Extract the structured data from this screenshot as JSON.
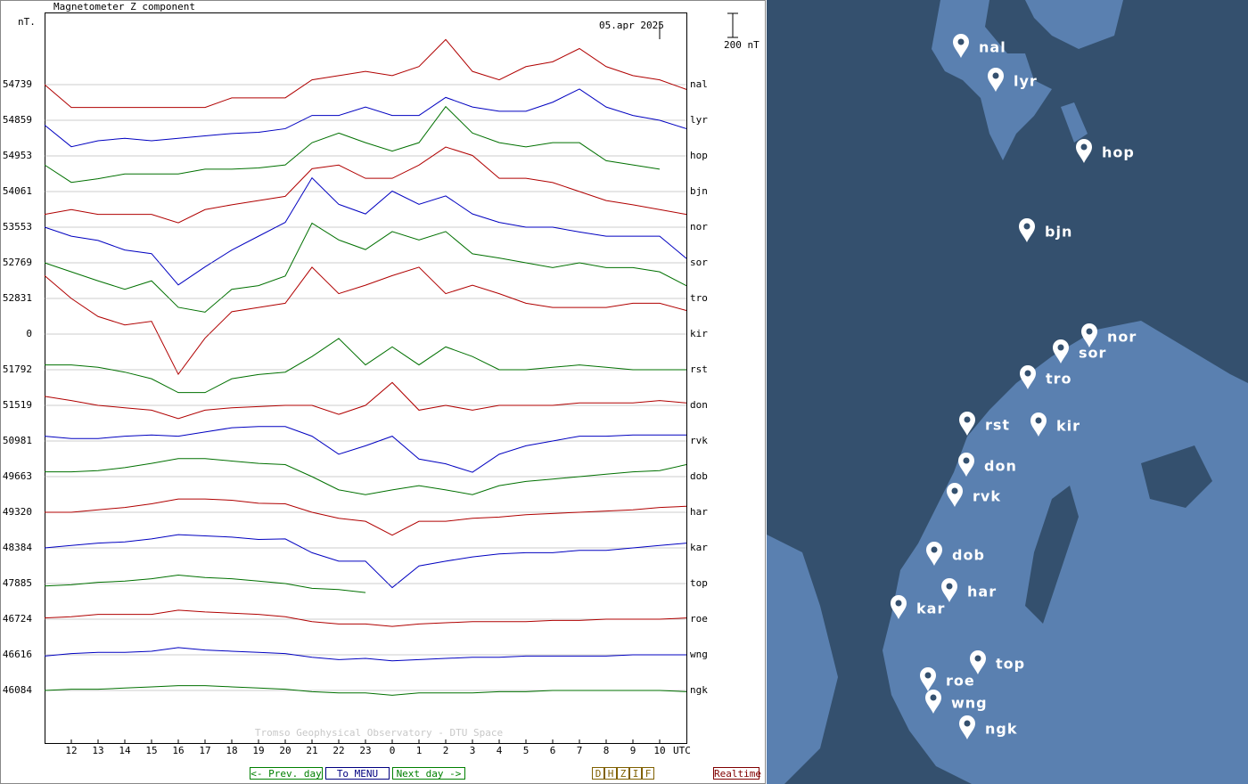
{
  "plot": {
    "title": "Magnetometer Z component",
    "unit_label": "nT.",
    "date": "05.apr 2025",
    "scale": {
      "value": 200,
      "label": "200 nT"
    },
    "x_unit": "UTC",
    "watermark": "Tromso Geophysical Observatory - DTU Space",
    "xlim": [
      11,
      35
    ],
    "x": [
      11,
      12,
      13,
      14,
      15,
      16,
      17,
      18,
      19,
      20,
      21,
      22,
      23,
      24,
      25,
      26,
      27,
      28,
      29,
      30,
      31,
      32,
      33,
      34,
      35
    ],
    "xticks": [
      12,
      13,
      14,
      15,
      16,
      17,
      18,
      19,
      20,
      21,
      22,
      23,
      {
        "value": 24,
        "label": "0"
      },
      {
        "value": 25,
        "label": "1"
      },
      {
        "value": 26,
        "label": "2"
      },
      {
        "value": 27,
        "label": "3"
      },
      {
        "value": 28,
        "label": "4"
      },
      {
        "value": 29,
        "label": "5"
      },
      {
        "value": 30,
        "label": "6"
      },
      {
        "value": 31,
        "label": "7"
      },
      {
        "value": 32,
        "label": "8"
      },
      {
        "value": 33,
        "label": "9"
      },
      {
        "value": 34,
        "label": "10"
      }
    ],
    "stations": [
      {
        "name": "nal",
        "baseline": 54739,
        "color": "#b00000",
        "values": [
          0,
          -190,
          -190,
          -190,
          -190,
          -190,
          -190,
          -110,
          -110,
          -110,
          40,
          75,
          110,
          75,
          150,
          375,
          110,
          40,
          150,
          190,
          300,
          150,
          75,
          40,
          -40
        ]
      },
      {
        "name": "lyr",
        "baseline": 54859,
        "color": "#0000c0",
        "values": [
          -40,
          -220,
          -170,
          -150,
          -170,
          -150,
          -130,
          -110,
          -100,
          -70,
          40,
          40,
          110,
          40,
          40,
          190,
          110,
          75,
          75,
          150,
          260,
          110,
          40,
          0,
          -70
        ]
      },
      {
        "name": "hop",
        "baseline": 54953,
        "color": "#007000",
        "values": [
          -75,
          -220,
          -190,
          -150,
          -150,
          -150,
          -110,
          -110,
          -100,
          -75,
          110,
          190,
          110,
          40,
          110,
          410,
          190,
          110,
          75,
          110,
          110,
          -40,
          -75,
          -110,
          null
        ]
      },
      {
        "name": "bjn",
        "baseline": 54061,
        "color": "#b00000",
        "values": [
          -190,
          -150,
          -190,
          -190,
          -190,
          -260,
          -150,
          -110,
          -75,
          -40,
          190,
          220,
          110,
          110,
          220,
          370,
          300,
          110,
          110,
          75,
          0,
          -75,
          -110,
          -150,
          -190
        ]
      },
      {
        "name": "nor",
        "baseline": 53553,
        "color": "#0000c0",
        "values": [
          0,
          -75,
          -110,
          -190,
          -220,
          -480,
          -330,
          -190,
          -75,
          40,
          410,
          190,
          110,
          300,
          190,
          260,
          110,
          40,
          0,
          0,
          -40,
          -75,
          -75,
          -75,
          -260
        ]
      },
      {
        "name": "sor",
        "baseline": 52769,
        "color": "#007000",
        "values": [
          0,
          -75,
          -150,
          -220,
          -150,
          -370,
          -410,
          -220,
          -190,
          -110,
          330,
          190,
          110,
          260,
          190,
          260,
          75,
          40,
          0,
          -40,
          0,
          -40,
          -40,
          -75,
          -190
        ]
      },
      {
        "name": "tro",
        "baseline": 52831,
        "color": "#b00000",
        "values": [
          190,
          0,
          -150,
          -220,
          -190,
          -630,
          -330,
          -110,
          -75,
          -40,
          260,
          40,
          110,
          190,
          260,
          40,
          110,
          40,
          -40,
          -75,
          -75,
          -75,
          -40,
          -40,
          -100
        ]
      },
      {
        "name": "kir",
        "baseline": 0,
        "color": "#0000c0",
        "values": [
          null,
          null,
          null,
          null,
          null,
          null,
          null,
          null,
          null,
          null,
          null,
          null,
          null,
          null,
          null,
          null,
          null,
          null,
          null,
          null,
          null,
          null,
          null,
          null,
          null
        ]
      },
      {
        "name": "rst",
        "baseline": 51792,
        "color": "#007000",
        "values": [
          40,
          40,
          20,
          -20,
          -75,
          -190,
          -190,
          -75,
          -40,
          -20,
          110,
          260,
          40,
          190,
          40,
          190,
          110,
          0,
          0,
          20,
          40,
          20,
          0,
          0,
          0
        ]
      },
      {
        "name": "don",
        "baseline": 51519,
        "color": "#b00000",
        "values": [
          75,
          40,
          0,
          -20,
          -40,
          -110,
          -40,
          -20,
          -10,
          0,
          0,
          -75,
          0,
          190,
          -40,
          0,
          -40,
          0,
          0,
          0,
          20,
          20,
          20,
          40,
          20
        ]
      },
      {
        "name": "rvk",
        "baseline": 50981,
        "color": "#0000c0",
        "values": [
          40,
          20,
          20,
          40,
          50,
          40,
          75,
          110,
          120,
          120,
          40,
          -110,
          -40,
          40,
          -150,
          -190,
          -260,
          -110,
          -40,
          0,
          40,
          40,
          50,
          50,
          50
        ]
      },
      {
        "name": "dob",
        "baseline": 49663,
        "color": "#007000",
        "values": [
          40,
          40,
          50,
          75,
          110,
          150,
          150,
          130,
          110,
          100,
          0,
          -110,
          -150,
          -110,
          -75,
          -110,
          -150,
          -75,
          -40,
          -20,
          0,
          20,
          40,
          50,
          100
        ]
      },
      {
        "name": "har",
        "baseline": 49320,
        "color": "#b00000",
        "values": [
          0,
          0,
          20,
          40,
          70,
          110,
          110,
          100,
          75,
          70,
          0,
          -50,
          -75,
          -190,
          -75,
          -75,
          -50,
          -40,
          -20,
          -10,
          0,
          10,
          20,
          40,
          50
        ]
      },
      {
        "name": "kar",
        "baseline": 48384,
        "color": "#0000c0",
        "values": [
          0,
          20,
          40,
          50,
          75,
          110,
          100,
          90,
          70,
          75,
          -40,
          -110,
          -110,
          -330,
          -150,
          -110,
          -75,
          -50,
          -40,
          -40,
          -20,
          -20,
          0,
          20,
          40
        ]
      },
      {
        "name": "top",
        "baseline": 47885,
        "color": "#007000",
        "values": [
          -20,
          -10,
          10,
          20,
          40,
          70,
          50,
          40,
          20,
          0,
          -40,
          -50,
          -75,
          null,
          null,
          null,
          null,
          null,
          null,
          null,
          null,
          null,
          null,
          null,
          null
        ]
      },
      {
        "name": "roe",
        "baseline": 46724,
        "color": "#b00000",
        "values": [
          10,
          20,
          40,
          40,
          40,
          75,
          60,
          50,
          40,
          20,
          -20,
          -40,
          -40,
          -60,
          -40,
          -30,
          -20,
          -20,
          -20,
          -10,
          -10,
          0,
          0,
          0,
          10
        ]
      },
      {
        "name": "wng",
        "baseline": 46616,
        "color": "#0000c0",
        "values": [
          -10,
          10,
          20,
          20,
          30,
          60,
          40,
          30,
          20,
          10,
          -20,
          -40,
          -30,
          -50,
          -40,
          -30,
          -20,
          -20,
          -10,
          -10,
          -10,
          -10,
          0,
          0,
          0
        ]
      },
      {
        "name": "ngk",
        "baseline": 46084,
        "color": "#007000",
        "values": [
          0,
          10,
          10,
          20,
          30,
          40,
          40,
          30,
          20,
          10,
          -10,
          -20,
          -20,
          -40,
          -20,
          -20,
          -20,
          -10,
          -10,
          0,
          0,
          0,
          0,
          0,
          -10
        ]
      }
    ]
  },
  "nav": {
    "buttons": [
      "<- Prev. day",
      "To MENU",
      "Next day ->"
    ],
    "components": [
      "D",
      "H",
      "Z",
      "I",
      "F"
    ],
    "realtime": "Realtime"
  }
}
